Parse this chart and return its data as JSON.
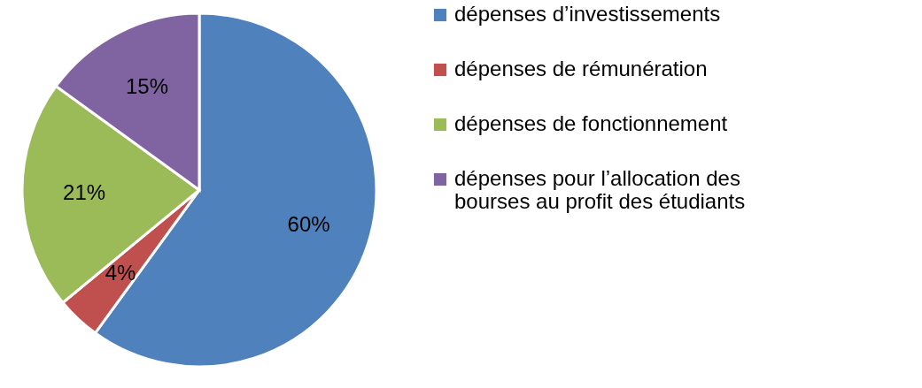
{
  "chart_data": {
    "type": "pie",
    "categories": [
      "dépenses d’investissements",
      "dépenses de rémunération",
      "dépenses de fonctionnement",
      "dépenses pour l’allocation des bourses au profit des étudiants"
    ],
    "values": [
      60,
      4,
      21,
      15
    ],
    "colors": [
      "#4f81bd",
      "#c0504d",
      "#9bbb59",
      "#8064a2"
    ],
    "value_labels": [
      "60%",
      "4%",
      "21%",
      "15%"
    ],
    "legend": "right"
  }
}
